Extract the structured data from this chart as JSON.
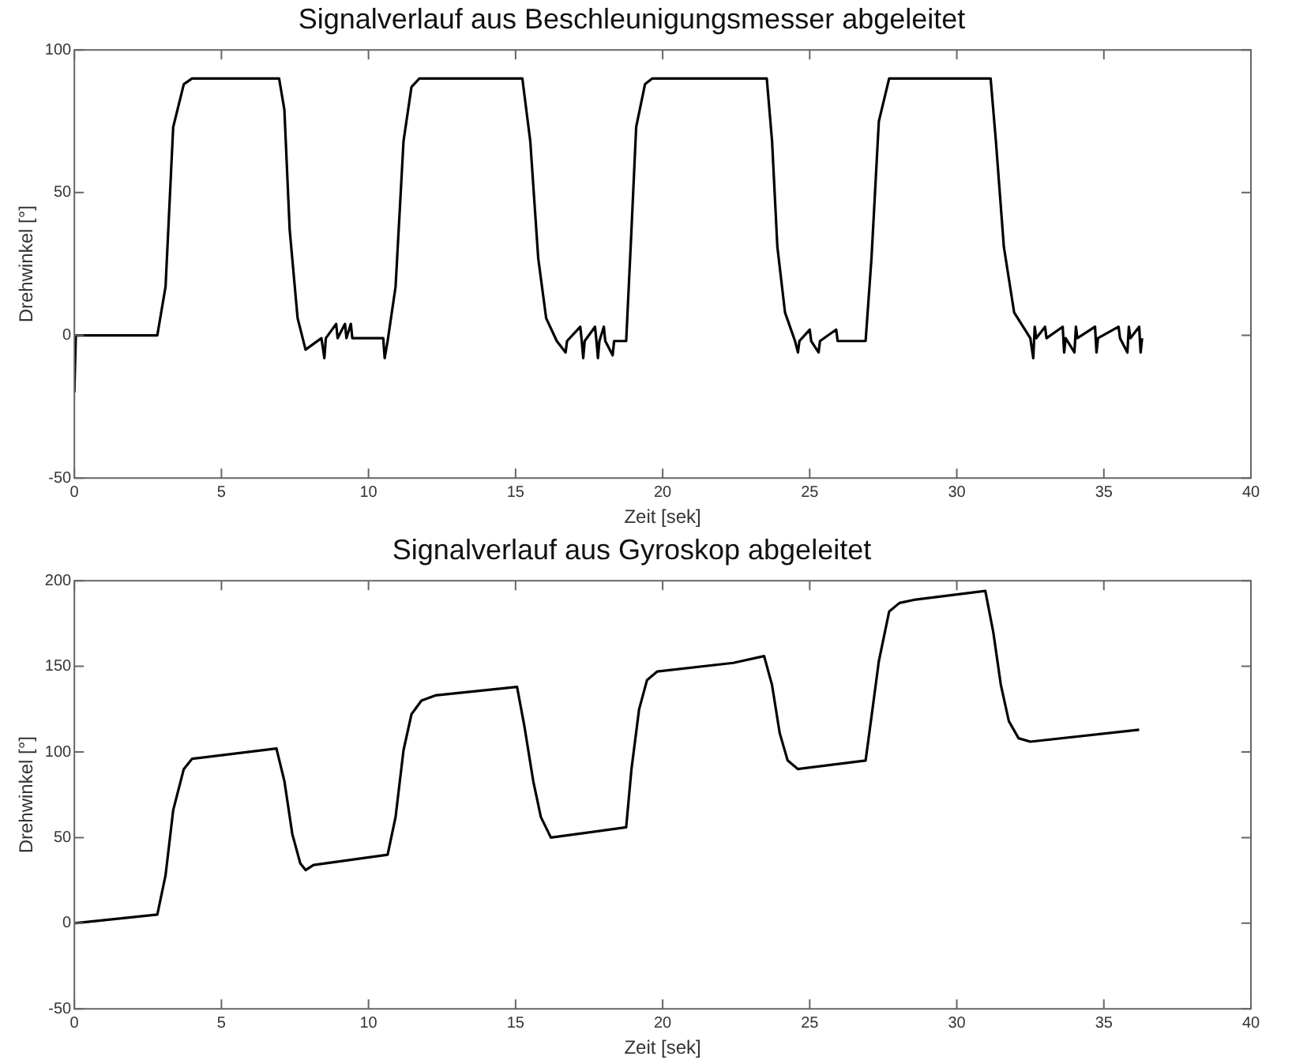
{
  "chart_data": [
    {
      "type": "line",
      "title": "Signalverlauf aus Beschleunigungsmesser abgeleitet",
      "xlabel": "Zeit [sek]",
      "ylabel": "Drehwinkel [°]",
      "xlim": [
        0,
        40
      ],
      "xticks": [
        0,
        5,
        10,
        15,
        20,
        25,
        30,
        35,
        40
      ],
      "ylim": [
        -50,
        100
      ],
      "yticks": [
        -50,
        0,
        50,
        100
      ],
      "series": [
        {
          "color": "#000000",
          "x": [
            0,
            0.05,
            2.82,
            3.1,
            3.36,
            3.72,
            4.0,
            6.96,
            7.14,
            7.32,
            7.59,
            7.86,
            8.13,
            8.4,
            8.5,
            8.55,
            8.9,
            8.95,
            9.2,
            9.25,
            9.4,
            9.45,
            10.5,
            10.55,
            10.65,
            10.92,
            11.19,
            11.46,
            11.73,
            15.23,
            15.5,
            15.77,
            16.04,
            16.4,
            16.7,
            16.75,
            17.2,
            17.25,
            17.3,
            17.35,
            17.7,
            17.75,
            17.8,
            17.85,
            18.0,
            18.05,
            18.3,
            18.35,
            18.76,
            18.94,
            19.1,
            19.4,
            19.65,
            23.54,
            23.72,
            23.9,
            24.16,
            24.5,
            24.6,
            24.65,
            25.0,
            25.05,
            25.3,
            25.35,
            25.9,
            25.95,
            26.9,
            27.1,
            27.35,
            27.7,
            31.15,
            31.33,
            31.6,
            31.95,
            32.5,
            32.6,
            32.65,
            32.7,
            33.0,
            33.05,
            33.6,
            33.65,
            33.7,
            34.0,
            34.05,
            34.1,
            34.7,
            34.75,
            34.8,
            35.5,
            35.55,
            35.8,
            35.85,
            35.9,
            36.2,
            36.25,
            36.3
          ],
          "values": [
            -20,
            0,
            0,
            17,
            73,
            88,
            90,
            90,
            79,
            37,
            6,
            -5,
            -3,
            -1,
            -8,
            -1,
            4,
            -1,
            4,
            -1,
            4,
            -1,
            -1,
            -8,
            -2,
            17,
            68,
            87,
            90,
            90,
            68,
            27,
            6,
            -2,
            -6,
            -2,
            3,
            -2,
            -8,
            -2,
            3,
            -2,
            -8,
            -2,
            3,
            -2,
            -7,
            -2,
            -2,
            37,
            73,
            88,
            90,
            90,
            68,
            31,
            8,
            -2,
            -6,
            -2,
            2,
            -2,
            -6,
            -2,
            2,
            -2,
            -2,
            27,
            75,
            90,
            90,
            68,
            31,
            8,
            -1,
            -8,
            3,
            -1,
            3,
            -1,
            3,
            -6,
            -1,
            -6,
            3,
            -1,
            3,
            -6,
            -1,
            3,
            -1,
            -6,
            3,
            -1,
            3,
            -6,
            -1
          ]
        }
      ]
    },
    {
      "type": "line",
      "title": "Signalverlauf aus Gyroskop abgeleitet",
      "xlabel": "Zeit [sek]",
      "ylabel": "Drehwinkel [°]",
      "xlim": [
        0,
        40
      ],
      "xticks": [
        0,
        5,
        10,
        15,
        20,
        25,
        30,
        35,
        40
      ],
      "ylim": [
        -50,
        200
      ],
      "yticks": [
        -50,
        0,
        50,
        100,
        150,
        200
      ],
      "series": [
        {
          "color": "#000000",
          "x": [
            0,
            2.82,
            3.1,
            3.36,
            3.72,
            4.0,
            6.87,
            7.14,
            7.41,
            7.68,
            7.86,
            8.13,
            10.65,
            10.92,
            11.19,
            11.46,
            11.8,
            12.27,
            15.05,
            15.3,
            15.6,
            15.86,
            16.2,
            18.76,
            18.94,
            19.2,
            19.47,
            19.82,
            22.4,
            23.45,
            23.72,
            23.98,
            24.25,
            24.6,
            26.9,
            27.08,
            27.35,
            27.7,
            28.05,
            28.6,
            30.97,
            31.24,
            31.5,
            31.77,
            32.1,
            32.5,
            36.2
          ],
          "values": [
            0,
            5,
            28,
            66,
            90,
            96,
            102,
            83,
            52,
            35,
            31,
            34,
            40,
            62,
            101,
            122,
            130,
            133,
            138,
            115,
            83,
            62,
            50,
            56,
            90,
            125,
            142,
            147,
            152,
            156,
            139,
            111,
            95,
            90,
            95,
            118,
            153,
            182,
            187,
            189,
            194,
            170,
            139,
            118,
            108,
            106,
            113
          ]
        }
      ]
    }
  ]
}
